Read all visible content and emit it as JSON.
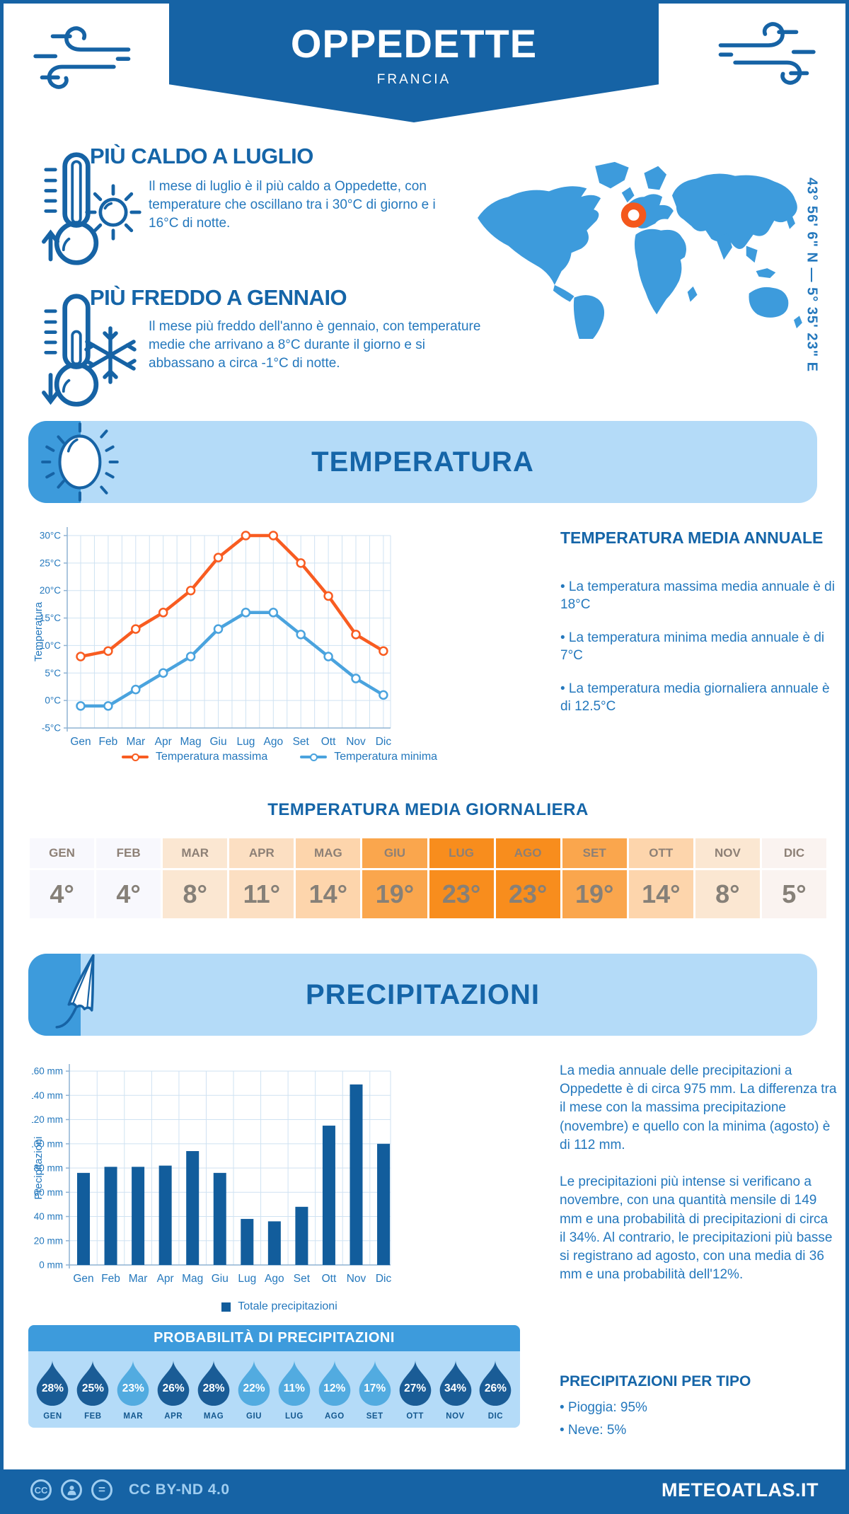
{
  "page": {
    "title": "OPPEDETTE",
    "subtitle": "FRANCIA",
    "coordinates": "43° 56' 6\" N — 5° 35' 23\" E",
    "footer_license": "CC BY-ND 4.0",
    "footer_brand": "METEOATLAS.IT",
    "cc_badge": "CC",
    "nd_badge": "="
  },
  "highlights": {
    "warm": {
      "title": "PIÙ CALDO A LUGLIO",
      "text": "Il mese di luglio è il più caldo a Oppedette, con temperature che oscillano tra i 30°C di giorno e i 16°C di notte."
    },
    "cold": {
      "title": "PIÙ FREDDO A GENNAIO",
      "text": "Il mese più freddo dell'anno è gennaio, con temperature medie che arrivano a 8°C durante il giorno e si abbassano a circa -1°C di notte."
    }
  },
  "temperature_section": {
    "banner": "TEMPERATURA",
    "annual_title": "TEMPERATURA MEDIA ANNUALE",
    "bullets": [
      "• La temperatura massima media annuale è di 18°C",
      "• La temperatura minima media annuale è di 7°C",
      "• La temperatura media giornaliera annuale è di 12.5°C"
    ],
    "daily_title": "TEMPERATURA MEDIA GIORNALIERA"
  },
  "daily_table": {
    "months": [
      "GEN",
      "FEB",
      "MAR",
      "APR",
      "MAG",
      "GIU",
      "LUG",
      "AGO",
      "SET",
      "OTT",
      "NOV",
      "DIC"
    ],
    "values": [
      "4°",
      "4°",
      "8°",
      "11°",
      "14°",
      "19°",
      "23°",
      "23°",
      "19°",
      "14°",
      "8°",
      "5°"
    ],
    "cell_colors": [
      "#f8f8fd",
      "#f8f8fd",
      "#fbe7d2",
      "#fcdfc2",
      "#fdd5ac",
      "#faa64d",
      "#f88d1d",
      "#f88d1d",
      "#faa64d",
      "#fdd5ac",
      "#fbe7d2",
      "#faf3f0"
    ]
  },
  "precipitation_section": {
    "banner": "PRECIPITAZIONI",
    "paragraph1": "La media annuale delle precipitazioni a Oppedette è di circa 975 mm. La differenza tra il mese con la massima precipitazione (novembre) e quello con la minima (agosto) è di 112 mm.",
    "paragraph2": "Le precipitazioni più intense si verificano a novembre, con una quantità mensile di 149 mm e una probabilità di precipitazioni di circa il 34%. Al contrario, le precipitazioni più basse si registrano ad agosto, con una media di 36 mm e una probabilità dell'12%.",
    "prob_title": "PROBABILITÀ DI PRECIPITAZIONI",
    "type_title": "PRECIPITAZIONI PER TIPO",
    "type_bullets": [
      "• Pioggia: 95%",
      "• Neve: 5%"
    ]
  },
  "probability": {
    "months": [
      "GEN",
      "FEB",
      "MAR",
      "APR",
      "MAG",
      "GIU",
      "LUG",
      "AGO",
      "SET",
      "OTT",
      "NOV",
      "DIC"
    ],
    "values": [
      28,
      25,
      23,
      26,
      28,
      22,
      11,
      12,
      17,
      27,
      34,
      26
    ],
    "dark_threshold": 25,
    "dark_color": "#1a5c96",
    "light_color": "#52abe0"
  },
  "chart_data": [
    {
      "type": "line",
      "categories": [
        "Gen",
        "Feb",
        "Mar",
        "Apr",
        "Mag",
        "Giu",
        "Lug",
        "Ago",
        "Set",
        "Ott",
        "Nov",
        "Dic"
      ],
      "series": [
        {
          "name": "Temperatura massima",
          "color": "#f85c21",
          "values": [
            8,
            9,
            13,
            16,
            20,
            26,
            30,
            30,
            25,
            19,
            12,
            9
          ]
        },
        {
          "name": "Temperatura minima",
          "color": "#4aa3de",
          "values": [
            -1,
            -1,
            2,
            5,
            8,
            13,
            16,
            16,
            12,
            8,
            4,
            1
          ]
        }
      ],
      "ylabel": "Temperatura",
      "ylim": [
        -5,
        30
      ],
      "ytick_step": 5,
      "ytick_suffix": "°C",
      "grid": true,
      "legend_position": "bottom"
    },
    {
      "type": "bar",
      "categories": [
        "Gen",
        "Feb",
        "Mar",
        "Apr",
        "Mag",
        "Giu",
        "Lug",
        "Ago",
        "Set",
        "Ott",
        "Nov",
        "Dic"
      ],
      "series": [
        {
          "name": "Totale precipitazioni",
          "color": "#125d9c",
          "values": [
            76,
            81,
            81,
            82,
            94,
            76,
            38,
            36,
            48,
            115,
            149,
            100
          ]
        }
      ],
      "ylabel": "Precipitazioni",
      "ylim": [
        0,
        160
      ],
      "ytick_step": 20,
      "ytick_suffix": " mm",
      "grid": true,
      "legend_position": "bottom"
    }
  ],
  "colors": {
    "primary": "#1663a5",
    "heading": "#1565a8",
    "body_text": "#2478bd",
    "banner_bg": "#b4dbf8",
    "accent_blue": "#3d9bdc",
    "map_fill": "#3d9bdc",
    "marker_orange": "#f4581c",
    "grid": "#cfe2f2"
  }
}
